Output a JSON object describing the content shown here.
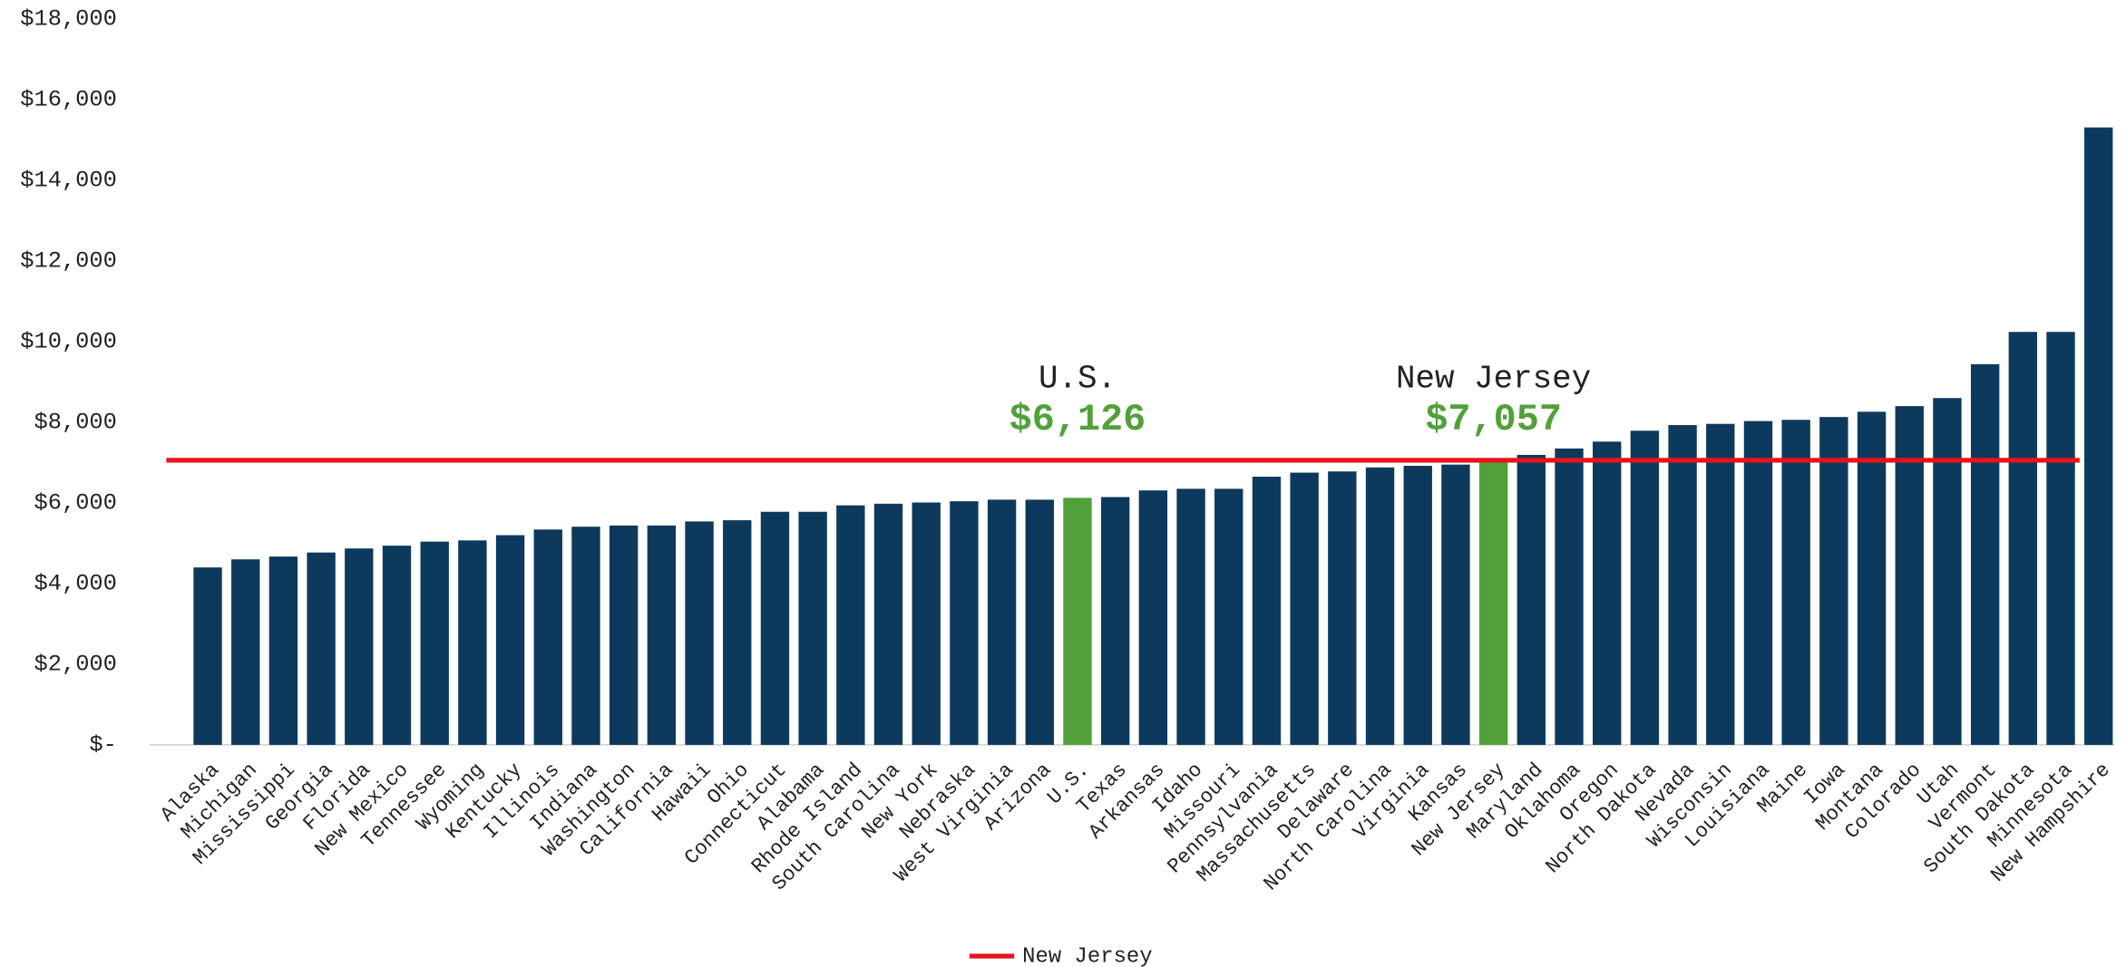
{
  "chart_data": {
    "type": "bar",
    "categories": [
      "Alaska",
      "Michigan",
      "Mississippi",
      "Georgia",
      "Florida",
      "New Mexico",
      "Tennessee",
      "Wyoming",
      "Kentucky",
      "Illinois",
      "Indiana",
      "Washington",
      "California",
      "Hawaii",
      "Ohio",
      "Connecticut",
      "Alabama",
      "Rhode Island",
      "South Carolina",
      "New York",
      "Nebraska",
      "West Virginia",
      "Arizona",
      "U.S.",
      "Texas",
      "Arkansas",
      "Idaho",
      "Missouri",
      "Pennsylvania",
      "Massachusetts",
      "Delaware",
      "North Carolina",
      "Virginia",
      "Kansas",
      "New Jersey",
      "Maryland",
      "Oklahoma",
      "Oregon",
      "North Dakota",
      "Nevada",
      "Wisconsin",
      "Louisiana",
      "Maine",
      "Iowa",
      "Montana",
      "Colorado",
      "Utah",
      "Vermont",
      "South Dakota",
      "Minnesota",
      "New Hampshire"
    ],
    "values": [
      4400,
      4600,
      4670,
      4770,
      4870,
      4940,
      5040,
      5070,
      5200,
      5340,
      5410,
      5440,
      5440,
      5540,
      5570,
      5780,
      5780,
      5940,
      5980,
      6010,
      6040,
      6080,
      6080,
      6126,
      6145,
      6310,
      6350,
      6350,
      6650,
      6750,
      6780,
      6880,
      6920,
      6950,
      7057,
      7190,
      7350,
      7520,
      7790,
      7930,
      7960,
      8030,
      8060,
      8130,
      8260,
      8400,
      8600,
      9440,
      10240,
      10240,
      15310
    ],
    "value_labels": [
      null,
      null,
      null,
      null,
      null,
      null,
      null,
      null,
      null,
      null,
      null,
      null,
      null,
      null,
      null,
      null,
      null,
      null,
      null,
      null,
      null,
      null,
      null,
      "$6,126",
      null,
      null,
      null,
      null,
      null,
      null,
      null,
      null,
      null,
      null,
      "$7,057",
      null,
      null,
      null,
      null,
      null,
      null,
      null,
      null,
      null,
      null,
      null,
      null,
      null,
      null,
      null,
      null
    ],
    "colors": [
      "#0d3a5c",
      "#0d3a5c",
      "#0d3a5c",
      "#0d3a5c",
      "#0d3a5c",
      "#0d3a5c",
      "#0d3a5c",
      "#0d3a5c",
      "#0d3a5c",
      "#0d3a5c",
      "#0d3a5c",
      "#0d3a5c",
      "#0d3a5c",
      "#0d3a5c",
      "#0d3a5c",
      "#0d3a5c",
      "#0d3a5c",
      "#0d3a5c",
      "#0d3a5c",
      "#0d3a5c",
      "#0d3a5c",
      "#0d3a5c",
      "#0d3a5c",
      "#52a03a",
      "#0d3a5c",
      "#0d3a5c",
      "#0d3a5c",
      "#0d3a5c",
      "#0d3a5c",
      "#0d3a5c",
      "#0d3a5c",
      "#0d3a5c",
      "#0d3a5c",
      "#0d3a5c",
      "#52a03a",
      "#0d3a5c",
      "#0d3a5c",
      "#0d3a5c",
      "#0d3a5c",
      "#0d3a5c",
      "#0d3a5c",
      "#0d3a5c",
      "#0d3a5c",
      "#0d3a5c",
      "#0d3a5c",
      "#0d3a5c",
      "#0d3a5c",
      "#0d3a5c",
      "#0d3a5c",
      "#0d3a5c",
      "#0d3a5c"
    ],
    "value_label_color": "#52a03a",
    "reference_lines": [
      {
        "name": "New Jersey",
        "value": 7057,
        "color": "#e8141b"
      }
    ],
    "ylim": [
      0,
      18000
    ],
    "yticks": [
      {
        "value": 0,
        "label": "$-"
      },
      {
        "value": 2000,
        "label": "$2,000"
      },
      {
        "value": 4000,
        "label": "$4,000"
      },
      {
        "value": 6000,
        "label": "$6,000"
      },
      {
        "value": 8000,
        "label": "$8,000"
      },
      {
        "value": 10000,
        "label": "$10,000"
      },
      {
        "value": 12000,
        "label": "$12,000"
      },
      {
        "value": 14000,
        "label": "$14,000"
      },
      {
        "value": 16000,
        "label": "$16,000"
      },
      {
        "value": 18000,
        "label": "$18,000"
      }
    ],
    "grid": false,
    "legend": "bottom"
  }
}
